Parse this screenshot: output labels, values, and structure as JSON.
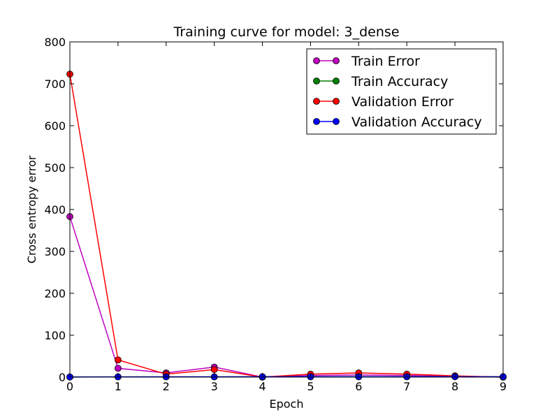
{
  "chart_data": {
    "type": "line",
    "title": "Training curve for model: 3_dense",
    "xlabel": "Epoch",
    "ylabel": "Cross entropy error",
    "xlim": [
      0,
      9
    ],
    "ylim": [
      0,
      800
    ],
    "x_ticks": [
      "0",
      "1",
      "2",
      "3",
      "4",
      "5",
      "6",
      "7",
      "8",
      "9"
    ],
    "y_ticks": [
      "0",
      "100",
      "200",
      "300",
      "400",
      "500",
      "600",
      "700",
      "800"
    ],
    "x": [
      0,
      1,
      2,
      3,
      4,
      5,
      6,
      7,
      8,
      9
    ],
    "grid": false,
    "legend_position": "top-right",
    "series": [
      {
        "name": "Train Error",
        "color": "#bf00bf",
        "values": [
          383,
          21,
          10,
          24,
          0,
          4,
          5,
          4,
          2,
          0
        ]
      },
      {
        "name": "Train Accuracy",
        "color": "#008000",
        "values": [
          0.2,
          0.6,
          0.7,
          0.6,
          0.8,
          0.8,
          0.8,
          0.8,
          0.9,
          0.9
        ]
      },
      {
        "name": "Validation Error",
        "color": "#ff0000",
        "values": [
          723,
          41,
          7,
          18,
          0,
          7,
          10,
          7,
          3,
          0
        ]
      },
      {
        "name": "Validation Accuracy",
        "color": "#0000ff",
        "values": [
          0.3,
          0.5,
          0.6,
          0.6,
          0.8,
          0.8,
          0.8,
          0.8,
          0.9,
          0.9
        ]
      }
    ]
  }
}
